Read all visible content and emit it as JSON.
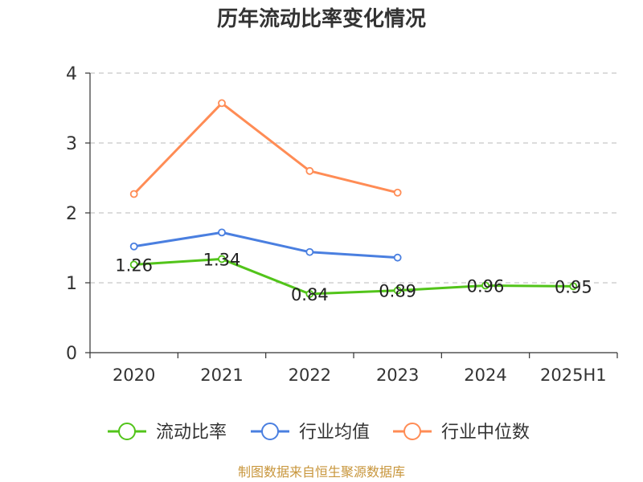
{
  "chart_data": {
    "type": "line",
    "title": "历年流动比率变化情况",
    "categories": [
      "2020",
      "2021",
      "2022",
      "2023",
      "2024",
      "2025H1"
    ],
    "ylim": [
      0,
      4
    ],
    "yticks": [
      "0",
      "1",
      "2",
      "3",
      "4"
    ],
    "grid": true,
    "legend_position": "bottom",
    "series": [
      {
        "name": "流动比率",
        "color": "#52c41a",
        "values": [
          1.26,
          1.34,
          0.84,
          0.89,
          0.96,
          0.95
        ],
        "labels": [
          "1.26",
          "1.34",
          "0.84",
          "0.89",
          "0.96",
          "0.95"
        ]
      },
      {
        "name": "行业均值",
        "color": "#4a7fe0",
        "values": [
          1.52,
          1.72,
          1.44,
          1.36,
          null,
          null
        ]
      },
      {
        "name": "行业中位数",
        "color": "#ff8c55",
        "values": [
          2.27,
          3.57,
          2.6,
          2.29,
          null,
          null
        ]
      }
    ]
  },
  "source_text": "制图数据来自恒生聚源数据库",
  "source_color": "#c8963c"
}
